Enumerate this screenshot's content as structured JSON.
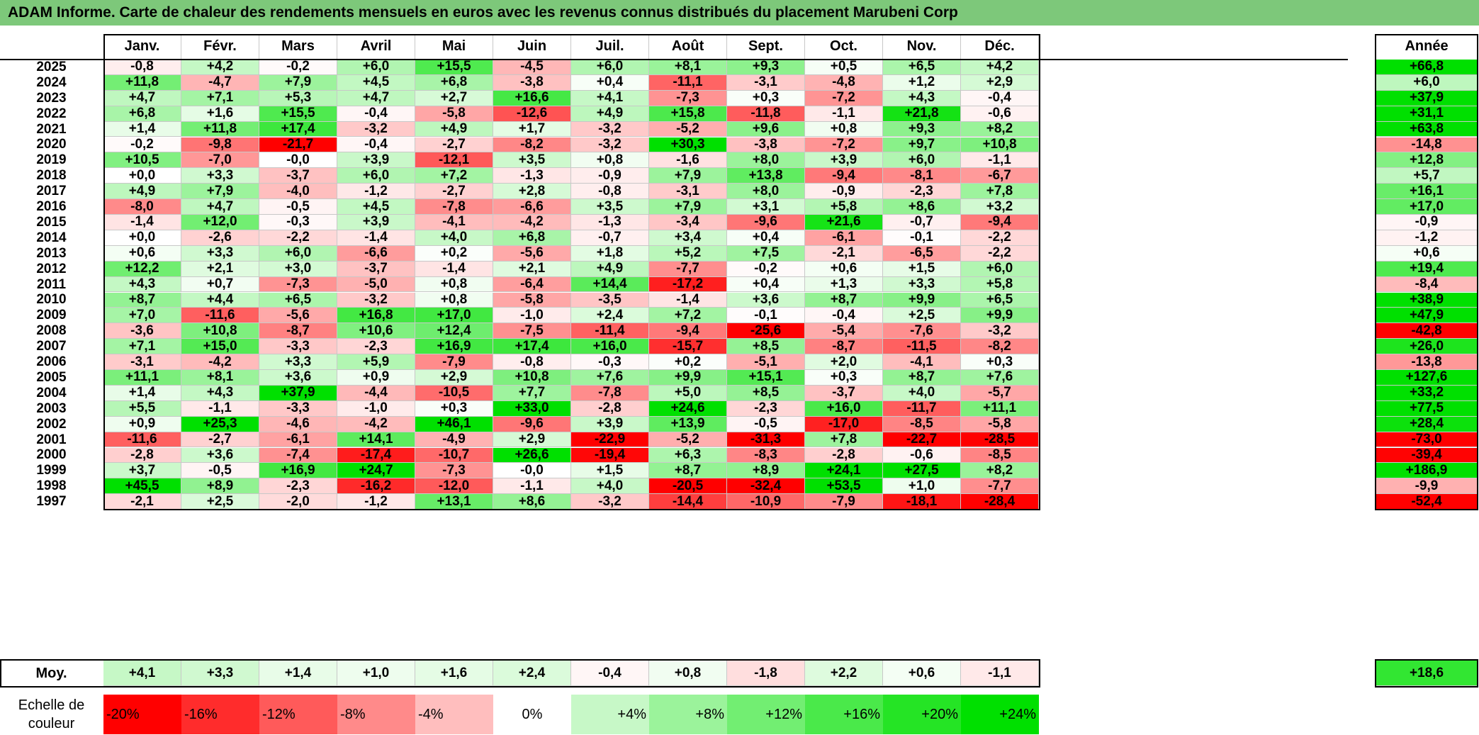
{
  "title": "ADAM Informe. Carte de chaleur des rendements mensuels en euros avec les revenus connus distribués du placement Marubeni Corp",
  "chart_data": {
    "type": "heatmap",
    "columns": [
      "Janv.",
      "Févr.",
      "Mars",
      "Avril",
      "Mai",
      "Juin",
      "Juil.",
      "Août",
      "Sept.",
      "Oct.",
      "Nov.",
      "Déc."
    ],
    "year_column": "Année",
    "rows": [
      {
        "year": "2025",
        "values": [
          "-0,8",
          "+4,2",
          "-0,2",
          "+6,0",
          "+15,5",
          "-4,5",
          "+6,0",
          "+8,1",
          "+9,3",
          "+0,5",
          "+6,5",
          "+4,2"
        ],
        "annual": "+66,8"
      },
      {
        "year": "2024",
        "values": [
          "+11,8",
          "-4,7",
          "+7,9",
          "+4,5",
          "+6,8",
          "-3,8",
          "+0,4",
          "-11,1",
          "-3,1",
          "-4,8",
          "+1,2",
          "+2,9"
        ],
        "annual": "+6,0"
      },
      {
        "year": "2023",
        "values": [
          "+4,7",
          "+7,1",
          "+5,3",
          "+4,7",
          "+2,7",
          "+16,6",
          "+4,1",
          "-7,3",
          "+0,3",
          "-7,2",
          "+4,3",
          "-0,4"
        ],
        "annual": "+37,9"
      },
      {
        "year": "2022",
        "values": [
          "+6,8",
          "+1,6",
          "+15,5",
          "-0,4",
          "-5,8",
          "-12,6",
          "+4,9",
          "+15,8",
          "-11,8",
          "-1,1",
          "+21,8",
          "-0,6"
        ],
        "annual": "+31,1"
      },
      {
        "year": "2021",
        "values": [
          "+1,4",
          "+11,8",
          "+17,4",
          "-3,2",
          "+4,9",
          "+1,7",
          "-3,2",
          "-5,2",
          "+9,6",
          "+0,8",
          "+9,3",
          "+8,2"
        ],
        "annual": "+63,8"
      },
      {
        "year": "2020",
        "values": [
          "-0,2",
          "-9,8",
          "-21,7",
          "-0,4",
          "-2,7",
          "-8,2",
          "-3,2",
          "+30,3",
          "-3,8",
          "-7,2",
          "+9,7",
          "+10,8"
        ],
        "annual": "-14,8"
      },
      {
        "year": "2019",
        "values": [
          "+10,5",
          "-7,0",
          "-0,0",
          "+3,9",
          "-12,1",
          "+3,5",
          "+0,8",
          "-1,6",
          "+8,0",
          "+3,9",
          "+6,0",
          "-1,1"
        ],
        "annual": "+12,8"
      },
      {
        "year": "2018",
        "values": [
          "+0,0",
          "+3,3",
          "-3,7",
          "+6,0",
          "+7,2",
          "-1,3",
          "-0,9",
          "+7,9",
          "+13,8",
          "-9,4",
          "-8,1",
          "-6,7"
        ],
        "annual": "+5,7"
      },
      {
        "year": "2017",
        "values": [
          "+4,9",
          "+7,9",
          "-4,0",
          "-1,2",
          "-2,7",
          "+2,8",
          "-0,8",
          "-3,1",
          "+8,0",
          "-0,9",
          "-2,3",
          "+7,8"
        ],
        "annual": "+16,1"
      },
      {
        "year": "2016",
        "values": [
          "-8,0",
          "+4,7",
          "-0,5",
          "+4,5",
          "-7,8",
          "-6,6",
          "+3,5",
          "+7,9",
          "+3,1",
          "+5,8",
          "+8,6",
          "+3,2"
        ],
        "annual": "+17,0"
      },
      {
        "year": "2015",
        "values": [
          "-1,4",
          "+12,0",
          "-0,3",
          "+3,9",
          "-4,1",
          "-4,2",
          "-1,3",
          "-3,4",
          "-9,6",
          "+21,6",
          "-0,7",
          "-9,4"
        ],
        "annual": "-0,9"
      },
      {
        "year": "2014",
        "values": [
          "+0,0",
          "-2,6",
          "-2,2",
          "-1,4",
          "+4,0",
          "+6,8",
          "-0,7",
          "+3,4",
          "+0,4",
          "-6,1",
          "-0,1",
          "-2,2"
        ],
        "annual": "-1,2"
      },
      {
        "year": "2013",
        "values": [
          "+0,6",
          "+3,3",
          "+6,0",
          "-6,6",
          "+0,2",
          "-5,6",
          "+1,8",
          "+5,2",
          "+7,5",
          "-2,1",
          "-6,5",
          "-2,2"
        ],
        "annual": "+0,6"
      },
      {
        "year": "2012",
        "values": [
          "+12,2",
          "+2,1",
          "+3,0",
          "-3,7",
          "-1,4",
          "+2,1",
          "+4,9",
          "-7,7",
          "-0,2",
          "+0,6",
          "+1,5",
          "+6,0"
        ],
        "annual": "+19,4"
      },
      {
        "year": "2011",
        "values": [
          "+4,3",
          "+0,7",
          "-7,3",
          "-5,0",
          "+0,8",
          "-6,4",
          "+14,4",
          "-17,2",
          "+0,4",
          "+1,3",
          "+3,3",
          "+5,8"
        ],
        "annual": "-8,4"
      },
      {
        "year": "2010",
        "values": [
          "+8,7",
          "+4,4",
          "+6,5",
          "-3,2",
          "+0,8",
          "-5,8",
          "-3,5",
          "-1,4",
          "+3,6",
          "+8,7",
          "+9,9",
          "+6,5"
        ],
        "annual": "+38,9"
      },
      {
        "year": "2009",
        "values": [
          "+7,0",
          "-11,6",
          "-5,6",
          "+16,8",
          "+17,0",
          "-1,0",
          "+2,4",
          "+7,2",
          "-0,1",
          "-0,4",
          "+2,5",
          "+9,9"
        ],
        "annual": "+47,9"
      },
      {
        "year": "2008",
        "values": [
          "-3,6",
          "+10,8",
          "-8,7",
          "+10,6",
          "+12,4",
          "-7,5",
          "-11,4",
          "-9,4",
          "-25,6",
          "-5,4",
          "-7,6",
          "-3,2"
        ],
        "annual": "-42,8"
      },
      {
        "year": "2007",
        "values": [
          "+7,1",
          "+15,0",
          "-3,3",
          "-2,3",
          "+16,9",
          "+17,4",
          "+16,0",
          "-15,7",
          "+8,5",
          "-8,7",
          "-11,5",
          "-8,2"
        ],
        "annual": "+26,0"
      },
      {
        "year": "2006",
        "values": [
          "-3,1",
          "-4,2",
          "+3,3",
          "+5,9",
          "-7,9",
          "-0,8",
          "-0,3",
          "+0,2",
          "-5,1",
          "+2,0",
          "-4,1",
          "+0,3"
        ],
        "annual": "-13,8"
      },
      {
        "year": "2005",
        "values": [
          "+11,1",
          "+8,1",
          "+3,6",
          "+0,9",
          "+2,9",
          "+10,8",
          "+7,6",
          "+9,9",
          "+15,1",
          "+0,3",
          "+8,7",
          "+7,6"
        ],
        "annual": "+127,6"
      },
      {
        "year": "2004",
        "values": [
          "+1,4",
          "+4,3",
          "+37,9",
          "-4,4",
          "-10,5",
          "+7,7",
          "-7,8",
          "+5,0",
          "+8,5",
          "-3,7",
          "+4,0",
          "-5,7"
        ],
        "annual": "+33,2"
      },
      {
        "year": "2003",
        "values": [
          "+5,5",
          "-1,1",
          "-3,3",
          "-1,0",
          "+0,3",
          "+33,0",
          "-2,8",
          "+24,6",
          "-2,3",
          "+16,0",
          "-11,7",
          "+11,1"
        ],
        "annual": "+77,5"
      },
      {
        "year": "2002",
        "values": [
          "+0,9",
          "+25,3",
          "-4,6",
          "-4,2",
          "+46,1",
          "-9,6",
          "+3,9",
          "+13,9",
          "-0,5",
          "-17,0",
          "-8,5",
          "-5,8"
        ],
        "annual": "+28,4"
      },
      {
        "year": "2001",
        "values": [
          "-11,6",
          "-2,7",
          "-6,1",
          "+14,1",
          "-4,9",
          "+2,9",
          "-22,9",
          "-5,2",
          "-31,3",
          "+7,8",
          "-22,7",
          "-28,5"
        ],
        "annual": "-73,0"
      },
      {
        "year": "2000",
        "values": [
          "-2,8",
          "+3,6",
          "-7,4",
          "-17,4",
          "-10,7",
          "+26,6",
          "-19,4",
          "+6,3",
          "-8,3",
          "-2,8",
          "-0,6",
          "-8,5"
        ],
        "annual": "-39,4"
      },
      {
        "year": "1999",
        "values": [
          "+3,7",
          "-0,5",
          "+16,9",
          "+24,7",
          "-7,3",
          "-0,0",
          "+1,5",
          "+8,7",
          "+8,9",
          "+24,1",
          "+27,5",
          "+8,2"
        ],
        "annual": "+186,9"
      },
      {
        "year": "1998",
        "values": [
          "+45,5",
          "+8,9",
          "-2,3",
          "-16,2",
          "-12,0",
          "-1,1",
          "+4,0",
          "-20,5",
          "-32,4",
          "+53,5",
          "+1,0",
          "-7,7"
        ],
        "annual": "-9,9"
      },
      {
        "year": "1997",
        "values": [
          "-2,1",
          "+2,5",
          "-2,0",
          "-1,2",
          "+13,1",
          "+8,6",
          "-3,2",
          "-14,4",
          "-10,9",
          "-7,9",
          "-18,1",
          "-28,4"
        ],
        "annual": "-52,4"
      }
    ],
    "average": {
      "label": "Moy.",
      "values": [
        "+4,1",
        "+3,3",
        "+1,4",
        "+1,0",
        "+1,6",
        "+2,4",
        "-0,4",
        "+0,8",
        "-1,8",
        "+2,2",
        "+0,6",
        "-1,1"
      ],
      "annual": "+18,6"
    },
    "scale": {
      "label": "Echelle de couleur",
      "steps": [
        {
          "label": "-20%",
          "value": -20
        },
        {
          "label": "-16%",
          "value": -16
        },
        {
          "label": "-12%",
          "value": -12
        },
        {
          "label": "-8%",
          "value": -8
        },
        {
          "label": "-4%",
          "value": -4
        },
        {
          "label": "0%",
          "value": 0
        },
        {
          "label": "+4%",
          "value": 4
        },
        {
          "label": "+8%",
          "value": 8
        },
        {
          "label": "+12%",
          "value": 12
        },
        {
          "label": "+16%",
          "value": 16
        },
        {
          "label": "+20%",
          "value": 20
        },
        {
          "label": "+24%",
          "value": 24
        }
      ]
    }
  },
  "colors": {
    "title_bg": "#7dc87a",
    "neg_max": "#ff0000",
    "pos_max": "#00e000",
    "neutral": "#ffffff"
  }
}
